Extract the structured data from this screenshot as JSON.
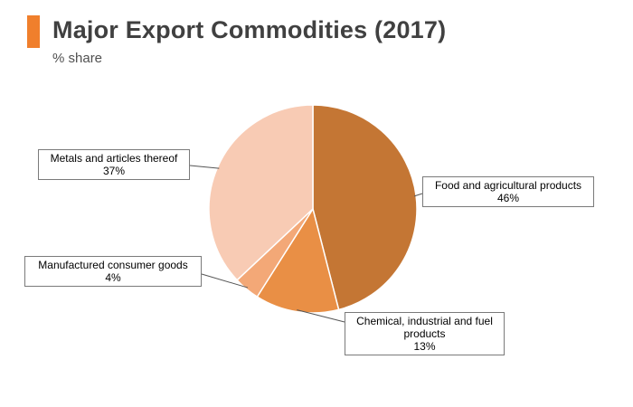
{
  "accent_color": "#F07F2C",
  "chart_data": {
    "type": "pie",
    "title": "Major Export Commodities (2017)",
    "subtitle": "% share",
    "slices": [
      {
        "label": "Food and agricultural products",
        "value": 46,
        "value_label": "46%",
        "color": "#C47634"
      },
      {
        "label": "Chemical, industrial and fuel products",
        "value": 13,
        "value_label": "13%",
        "color": "#E98F45"
      },
      {
        "label": "Manufactured consumer goods",
        "value": 4,
        "value_label": "4%",
        "color": "#F3A877"
      },
      {
        "label": "Metals and articles thereof",
        "value": 37,
        "value_label": "37%",
        "color": "#F8CBB4"
      }
    ],
    "start_angle": "12 o'clock",
    "direction": "clockwise",
    "legend": "none"
  }
}
